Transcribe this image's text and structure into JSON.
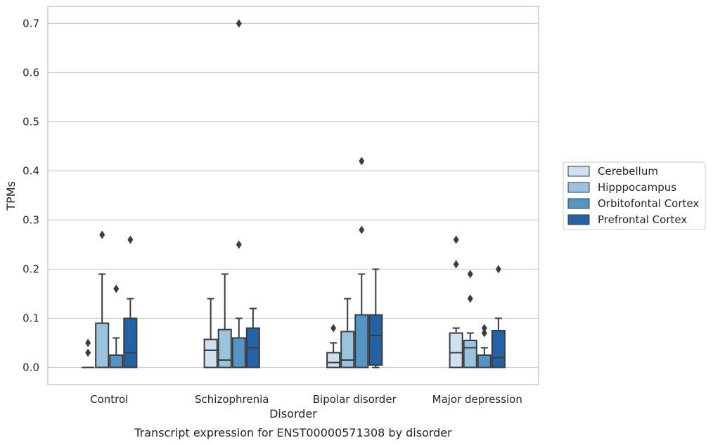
{
  "chart_data": {
    "type": "box",
    "caption": "Transcript expression for ENST00000571308 by disorder",
    "xlabel": "Disorder",
    "ylabel": "TPMs",
    "ylim": [
      -0.035,
      0.735
    ],
    "yticks": [
      0.0,
      0.1,
      0.2,
      0.3,
      0.4,
      0.5,
      0.6,
      0.7
    ],
    "ytick_labels": [
      "0.0",
      "0.1",
      "0.2",
      "0.3",
      "0.4",
      "0.5",
      "0.6",
      "0.7"
    ],
    "grid": true,
    "legend_position": "right",
    "categories": [
      "Control",
      "Schizophrenia",
      "Bipolar disorder",
      "Major depression"
    ],
    "series": [
      {
        "name": "Cerebellum",
        "color": "#cfe0f0",
        "boxes": [
          {
            "whislo": 0.0,
            "q1": 0.0,
            "med": 0.0,
            "q3": 0.0,
            "whishi": 0.0,
            "fliers": [
              0.05,
              0.03
            ]
          },
          {
            "whislo": 0.0,
            "q1": 0.0,
            "med": 0.035,
            "q3": 0.057,
            "whishi": 0.14,
            "fliers": []
          },
          {
            "whislo": 0.0,
            "q1": 0.0,
            "med": 0.01,
            "q3": 0.03,
            "whishi": 0.05,
            "fliers": [
              0.08
            ]
          },
          {
            "whislo": 0.0,
            "q1": 0.0,
            "med": 0.03,
            "q3": 0.07,
            "whishi": 0.08,
            "fliers": [
              0.26,
              0.21
            ]
          }
        ]
      },
      {
        "name": "Hipppocampus",
        "color": "#9ac4de",
        "boxes": [
          {
            "whislo": 0.0,
            "q1": 0.0,
            "med": 0.0,
            "q3": 0.09,
            "whishi": 0.19,
            "fliers": [
              0.27
            ]
          },
          {
            "whislo": 0.0,
            "q1": 0.0,
            "med": 0.015,
            "q3": 0.077,
            "whishi": 0.19,
            "fliers": []
          },
          {
            "whislo": 0.0,
            "q1": 0.0,
            "med": 0.015,
            "q3": 0.073,
            "whishi": 0.14,
            "fliers": []
          },
          {
            "whislo": 0.0,
            "q1": 0.0,
            "med": 0.04,
            "q3": 0.055,
            "whishi": 0.07,
            "fliers": [
              0.19,
              0.14
            ]
          }
        ]
      },
      {
        "name": "Orbitofontal Cortex",
        "color": "#5595c6",
        "boxes": [
          {
            "whislo": 0.0,
            "q1": 0.0,
            "med": 0.0,
            "q3": 0.025,
            "whishi": 0.06,
            "fliers": [
              0.16
            ]
          },
          {
            "whislo": 0.0,
            "q1": 0.0,
            "med": 0.0,
            "q3": 0.06,
            "whishi": 0.1,
            "fliers": [
              0.7,
              0.25
            ]
          },
          {
            "whislo": 0.0,
            "q1": 0.0,
            "med": 0.0,
            "q3": 0.107,
            "whishi": 0.19,
            "fliers": [
              0.42,
              0.28
            ]
          },
          {
            "whislo": 0.0,
            "q1": 0.0,
            "med": 0.0,
            "q3": 0.025,
            "whishi": 0.04,
            "fliers": [
              0.08,
              0.07
            ]
          }
        ]
      },
      {
        "name": "Prefrontal Cortex",
        "color": "#2363a5",
        "boxes": [
          {
            "whislo": 0.0,
            "q1": 0.0,
            "med": 0.03,
            "q3": 0.1,
            "whishi": 0.14,
            "fliers": [
              0.26
            ]
          },
          {
            "whislo": 0.0,
            "q1": 0.0,
            "med": 0.04,
            "q3": 0.08,
            "whishi": 0.12,
            "fliers": []
          },
          {
            "whislo": 0.0,
            "q1": 0.005,
            "med": 0.065,
            "q3": 0.107,
            "whishi": 0.2,
            "fliers": []
          },
          {
            "whislo": 0.0,
            "q1": 0.0,
            "med": 0.02,
            "q3": 0.075,
            "whishi": 0.1,
            "fliers": [
              0.2
            ]
          }
        ]
      }
    ]
  }
}
